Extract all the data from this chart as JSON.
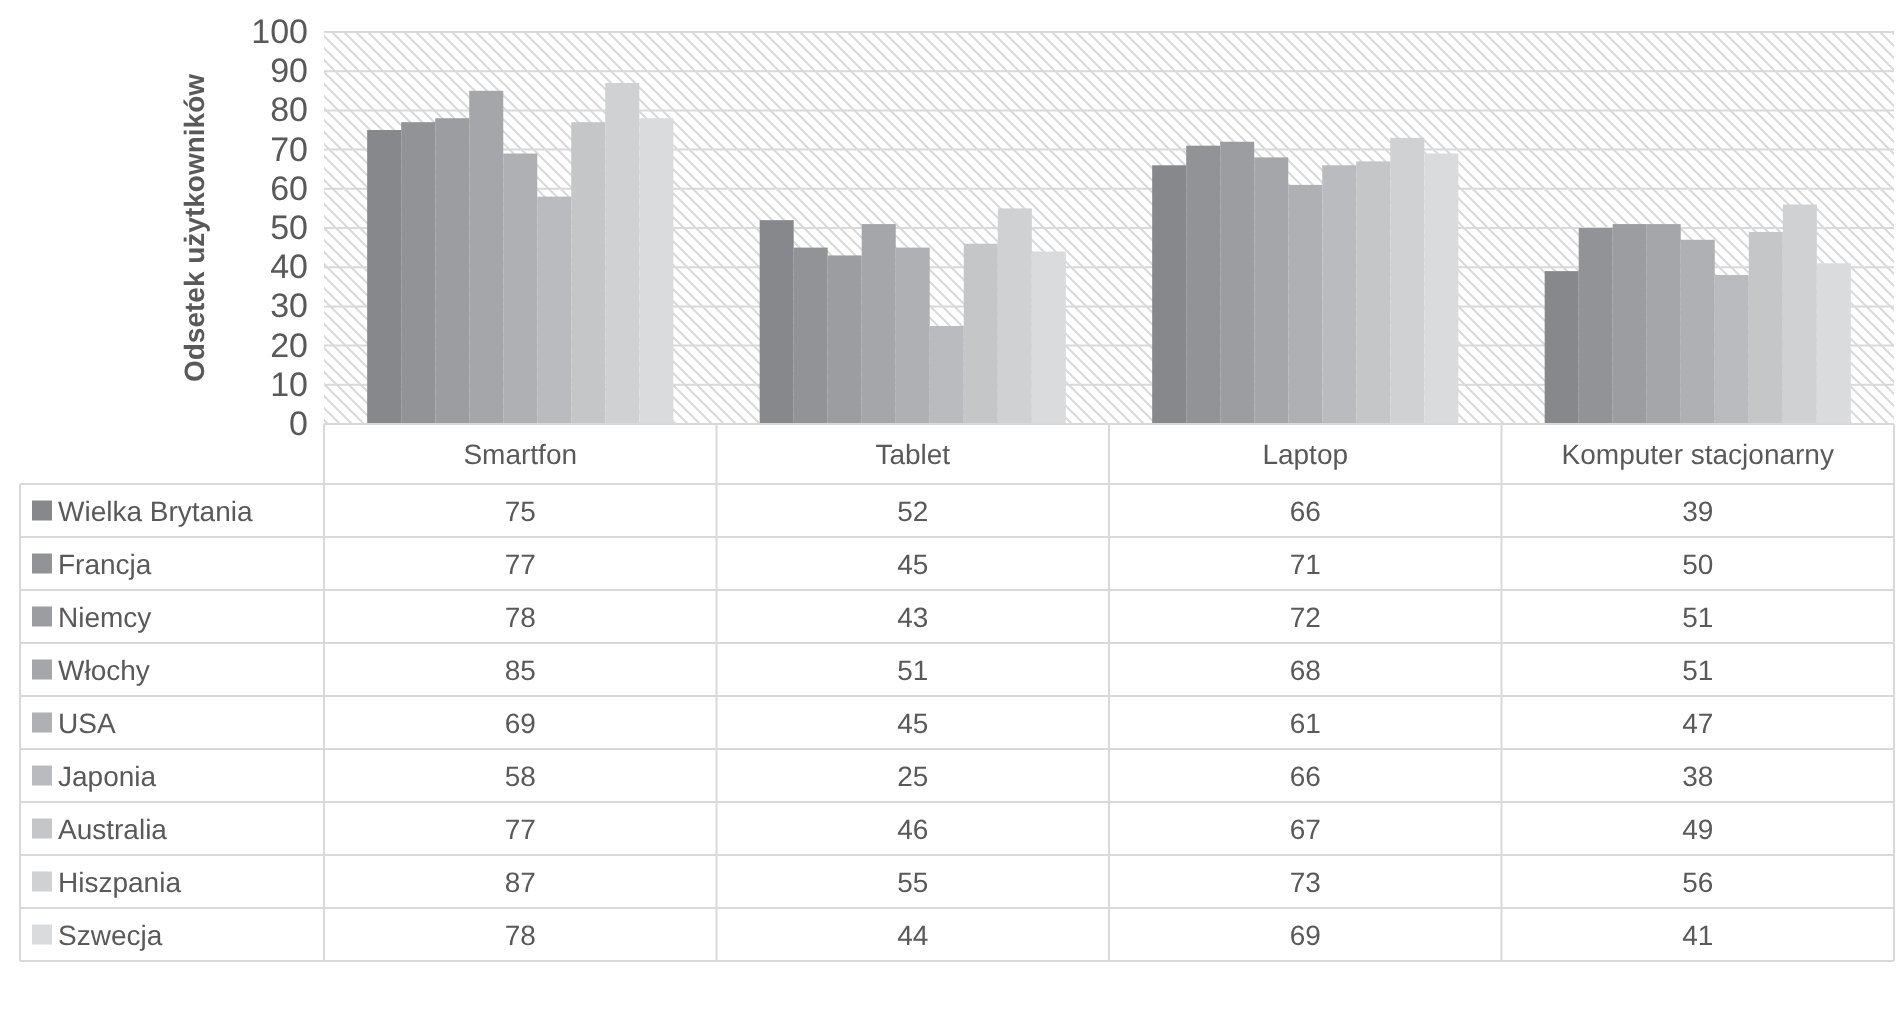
{
  "chart_data": {
    "type": "bar",
    "ylabel": "Odsetek użytkowników",
    "categories": [
      "Smartfon",
      "Tablet",
      "Laptop",
      "Komputer stacjonarny"
    ],
    "series": [
      {
        "name": "Wielka Brytania",
        "color": "#87888c",
        "values": [
          75,
          52,
          66,
          39
        ]
      },
      {
        "name": "Francja",
        "color": "#929396",
        "values": [
          77,
          45,
          71,
          50
        ]
      },
      {
        "name": "Niemcy",
        "color": "#9c9da0",
        "values": [
          78,
          43,
          72,
          51
        ]
      },
      {
        "name": "Włochy",
        "color": "#a5a6a9",
        "values": [
          85,
          51,
          68,
          51
        ]
      },
      {
        "name": "USA",
        "color": "#afb0b3",
        "values": [
          69,
          45,
          61,
          47
        ]
      },
      {
        "name": "Japonia",
        "color": "#babbbe",
        "values": [
          58,
          25,
          66,
          38
        ]
      },
      {
        "name": "Australia",
        "color": "#c5c6c8",
        "values": [
          77,
          46,
          67,
          49
        ]
      },
      {
        "name": "Hiszpania",
        "color": "#d0d1d3",
        "values": [
          87,
          55,
          73,
          56
        ]
      },
      {
        "name": "Szwecja",
        "color": "#dadbdd",
        "values": [
          78,
          44,
          69,
          41
        ]
      }
    ],
    "ylim": [
      0,
      100
    ],
    "yticks": [
      0,
      10,
      20,
      30,
      40,
      50,
      60,
      70,
      80,
      90,
      100
    ],
    "grid": "y",
    "legend": "bottom",
    "data_labels": true
  }
}
